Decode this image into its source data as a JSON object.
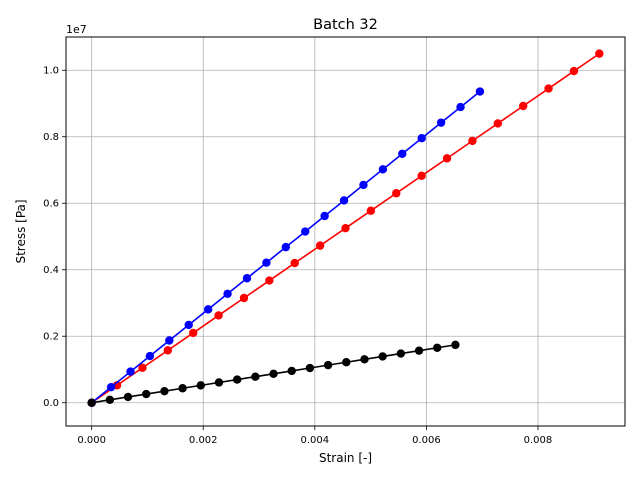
{
  "chart_data": {
    "type": "line",
    "title": "Batch 32",
    "xlabel": "Strain [-]",
    "ylabel": "Stress [Pa]",
    "y_offset_label": "1e7",
    "xlim": [
      -0.00046,
      0.00956
    ],
    "ylim": [
      -0.07,
      1.1
    ],
    "grid": true,
    "x_ticks": [
      0.0,
      0.002,
      0.004,
      0.006,
      0.008
    ],
    "x_tick_labels": [
      "0.000",
      "0.002",
      "0.004",
      "0.006",
      "0.008"
    ],
    "y_ticks": [
      0.0,
      0.2,
      0.4,
      0.6,
      0.8,
      1.0
    ],
    "y_tick_labels": [
      "0.0",
      "0.2",
      "0.4",
      "0.6",
      "0.8",
      "1.0"
    ],
    "series": [
      {
        "color": "#ff0000",
        "x": [
          0.0,
          0.000455,
          0.00091,
          0.001365,
          0.00182,
          0.002275,
          0.00273,
          0.003185,
          0.00364,
          0.004095,
          0.00455,
          0.005005,
          0.00546,
          0.005915,
          0.00637,
          0.006825,
          0.00728,
          0.007735,
          0.00819,
          0.008645,
          0.0091
        ],
        "y": [
          0.0,
          0.0525,
          0.105,
          0.1575,
          0.21,
          0.2625,
          0.315,
          0.3675,
          0.42,
          0.4725,
          0.525,
          0.5775,
          0.63,
          0.6825,
          0.735,
          0.7875,
          0.84,
          0.8925,
          0.945,
          0.9975,
          1.05
        ]
      },
      {
        "color": "#0000ff",
        "x": [
          0.0,
          0.000348,
          0.000696,
          0.001044,
          0.001392,
          0.00174,
          0.002088,
          0.002436,
          0.002784,
          0.003132,
          0.00348,
          0.003828,
          0.004176,
          0.004524,
          0.004872,
          0.00522,
          0.005568,
          0.005916,
          0.006264,
          0.006612,
          0.00696
        ],
        "y": [
          0.0,
          0.0468,
          0.0936,
          0.1404,
          0.1872,
          0.234,
          0.2808,
          0.3276,
          0.3744,
          0.4212,
          0.468,
          0.5148,
          0.5616,
          0.6084,
          0.6552,
          0.702,
          0.7488,
          0.7956,
          0.8424,
          0.8892,
          0.936
        ]
      },
      {
        "color": "#000000",
        "x": [
          0.0,
          0.000326,
          0.000652,
          0.000978,
          0.001304,
          0.00163,
          0.001956,
          0.002282,
          0.002608,
          0.002934,
          0.00326,
          0.003586,
          0.003912,
          0.004238,
          0.004564,
          0.00489,
          0.005216,
          0.005542,
          0.005868,
          0.006194,
          0.00652
        ],
        "y": [
          0.0,
          0.0087,
          0.0174,
          0.0261,
          0.0348,
          0.0435,
          0.0522,
          0.0609,
          0.0696,
          0.0783,
          0.087,
          0.0957,
          0.1044,
          0.1131,
          0.1218,
          0.1305,
          0.1392,
          0.1479,
          0.1566,
          0.1653,
          0.174
        ]
      }
    ]
  }
}
